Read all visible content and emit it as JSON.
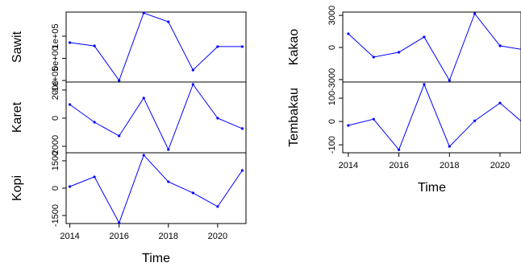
{
  "chart_data": [
    {
      "type": "line",
      "ylabel": "Sawit",
      "x": [
        2014,
        2015,
        2016,
        2017,
        2018,
        2019,
        2020,
        2021
      ],
      "xlim": [
        2013.85,
        2021.15
      ],
      "series": [
        {
          "color": "#0000ff",
          "values": [
            71000,
            56000,
            -100000,
            205000,
            165000,
            -53000,
            53000,
            53000
          ]
        }
      ],
      "ylim": [
        -107000,
        209000
      ],
      "yticks": [
        {
          "value": -100000,
          "label": "-1e+05"
        },
        {
          "value": 0,
          "label": "0e+00"
        },
        {
          "value": 100000,
          "label": "1e+05"
        }
      ]
    },
    {
      "type": "line",
      "ylabel": "Karet",
      "x": [
        2014,
        2015,
        2016,
        2017,
        2018,
        2019,
        2020,
        2021
      ],
      "xlim": [
        2013.85,
        2021.15
      ],
      "series": [
        {
          "color": "#0000ff",
          "values": [
            970,
            -290,
            -1260,
            1430,
            -2230,
            2400,
            0,
            -740
          ]
        }
      ],
      "ylim": [
        -2460,
        2570
      ],
      "yticks": [
        -2000,
        0,
        2000
      ]
    },
    {
      "type": "line",
      "ylabel": "Kopi",
      "x": [
        2014,
        2015,
        2016,
        2017,
        2018,
        2019,
        2020,
        2021
      ],
      "xlim": [
        2013.85,
        2021.15
      ],
      "series": [
        {
          "color": "#0000ff",
          "values": [
            88,
            620,
            -1900,
            1810,
            350,
            -260,
            -1010,
            970
          ]
        }
      ],
      "ylim": [
        -1940,
        1940
      ],
      "yticks": [
        -1500,
        0,
        1500
      ],
      "xlabel": "Time",
      "xticks": [
        2014,
        2016,
        2018,
        2020
      ]
    },
    {
      "type": "line",
      "ylabel": "Kakao",
      "x": [
        2014,
        2015,
        2016,
        2017,
        2018,
        2019,
        2020,
        2021
      ],
      "xlim": [
        2013.78,
        2020.83
      ],
      "series": [
        {
          "color": "#0000ff",
          "values": [
            1280,
            -900,
            -450,
            980,
            -3080,
            3160,
            150,
            -230
          ]
        }
      ],
      "ylim": [
        -3230,
        3310
      ],
      "yticks": [
        -3000,
        0,
        3000
      ]
    },
    {
      "type": "line",
      "ylabel": "Tembakau",
      "x": [
        2014,
        2015,
        2016,
        2017,
        2018,
        2019,
        2020,
        2021
      ],
      "xlim": [
        2013.78,
        2020.83
      ],
      "series": [
        {
          "color": "#0000ff",
          "values": [
            -17,
            10,
            -121,
            159,
            -107,
            3,
            79,
            -14
          ]
        }
      ],
      "ylim": [
        -134,
        169
      ],
      "yticks": [
        -100,
        0,
        100
      ],
      "xlabel": "Time",
      "xticks": [
        2014,
        2016,
        2018,
        2020
      ]
    }
  ]
}
